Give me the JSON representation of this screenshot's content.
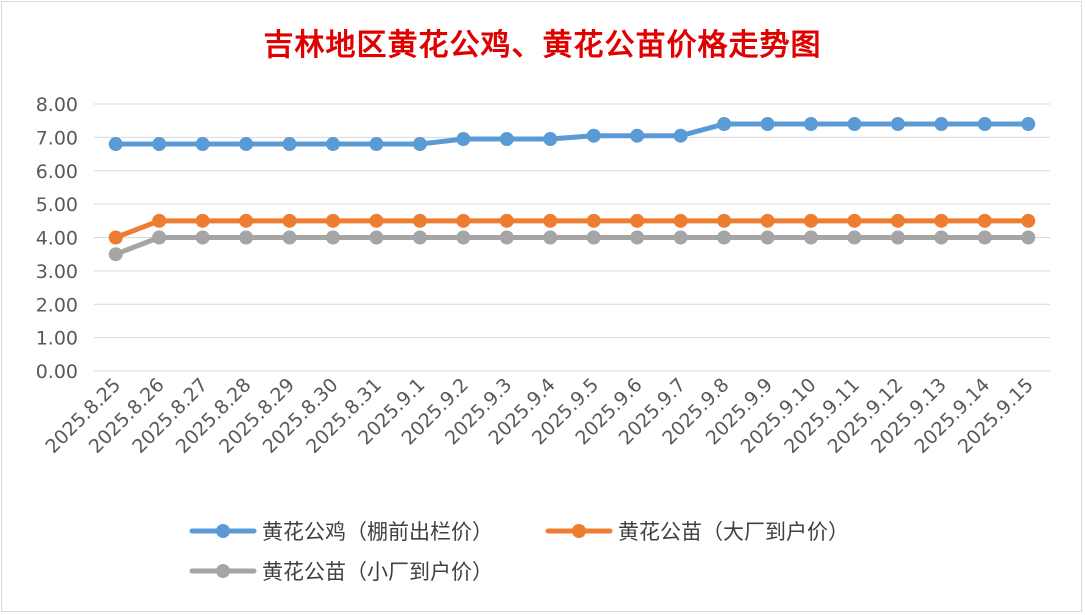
{
  "chart_data": {
    "type": "line",
    "title": "吉林地区黄花公鸡、黄花公苗价格走势图",
    "categories": [
      "2025.8.25",
      "2025.8.26",
      "2025.8.27",
      "2025.8.28",
      "2025.8.29",
      "2025.8.30",
      "2025.8.31",
      "2025.9.1",
      "2025.9.2",
      "2025.9.3",
      "2025.9.4",
      "2025.9.5",
      "2025.9.6",
      "2025.9.7",
      "2025.9.8",
      "2025.9.9",
      "2025.9.10",
      "2025.9.11",
      "2025.9.12",
      "2025.9.13",
      "2025.9.14",
      "2025.9.15"
    ],
    "yticks": [
      "0.00",
      "1.00",
      "2.00",
      "3.00",
      "4.00",
      "5.00",
      "6.00",
      "7.00",
      "8.00"
    ],
    "ylim": [
      0,
      8
    ],
    "grid": true,
    "legend_position": "bottom",
    "series": [
      {
        "name": "黄花公鸡（棚前出栏价）",
        "color": "#5b9bd5",
        "values": [
          6.8,
          6.8,
          6.8,
          6.8,
          6.8,
          6.8,
          6.8,
          6.8,
          6.95,
          6.95,
          6.95,
          7.05,
          7.05,
          7.05,
          7.4,
          7.4,
          7.4,
          7.4,
          7.4,
          7.4,
          7.4,
          7.4
        ]
      },
      {
        "name": "黄花公苗（大厂到户价）",
        "color": "#ed7d31",
        "values": [
          4.0,
          4.5,
          4.5,
          4.5,
          4.5,
          4.5,
          4.5,
          4.5,
          4.5,
          4.5,
          4.5,
          4.5,
          4.5,
          4.5,
          4.5,
          4.5,
          4.5,
          4.5,
          4.5,
          4.5,
          4.5,
          4.5
        ]
      },
      {
        "name": "黄花公苗（小厂到户价）",
        "color": "#a5a5a5",
        "values": [
          3.5,
          4.0,
          4.0,
          4.0,
          4.0,
          4.0,
          4.0,
          4.0,
          4.0,
          4.0,
          4.0,
          4.0,
          4.0,
          4.0,
          4.0,
          4.0,
          4.0,
          4.0,
          4.0,
          4.0,
          4.0,
          4.0
        ]
      }
    ]
  }
}
